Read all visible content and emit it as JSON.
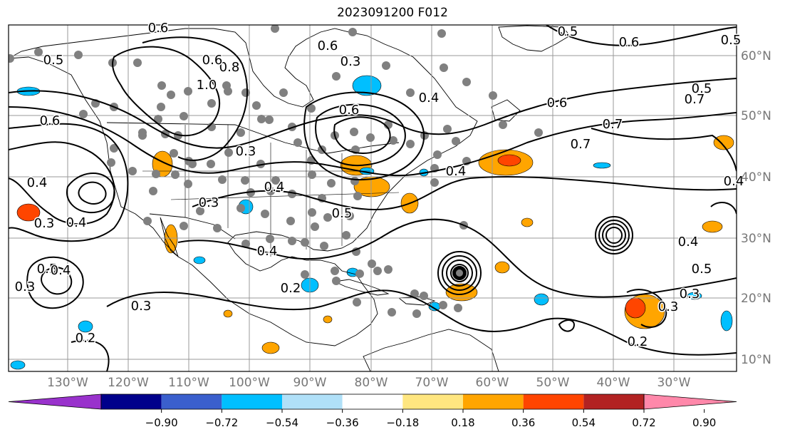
{
  "title": "2023091200 F012",
  "lon_labels": [
    "130°W",
    "120°W",
    "110°W",
    "100°W",
    "90°W",
    "80°W",
    "70°W",
    "60°W",
    "50°W",
    "40°W",
    "30°W"
  ],
  "lat_labels": [
    "60°N",
    "50°N",
    "40°N",
    "30°N",
    "20°N",
    "10°N"
  ],
  "contour_labels": [
    "0.5",
    "0.6",
    "0.5",
    "0.6",
    "0.4",
    "0.5",
    "0.7",
    "0.6",
    "0.8",
    "1.0",
    "0.6",
    "0.7",
    "0.4",
    "0.6",
    "0.7",
    "0.3",
    "0.6",
    "0.4",
    "0.3",
    "0.4",
    "0.3",
    "0.4",
    "0.3",
    "0.3",
    "0.4",
    "0.5",
    "0.3",
    "0.2",
    "0.3",
    "0.4",
    "0.4",
    "0.5",
    "0.2",
    "0.3",
    "0.2",
    "0.5",
    "0.4",
    "0.5",
    "0.6"
  ],
  "colorbar": {
    "colors": [
      "#9932cc",
      "#00008b",
      "#3a5fcd",
      "#00bfff",
      "#b0e0f8",
      "#ffffff",
      "#ffe680",
      "#ffa500",
      "#ff4500",
      "#b22222",
      "#ff88aa"
    ],
    "tick_labels": [
      "−0.90",
      "−0.72",
      "−0.54",
      "−0.36",
      "−0.18",
      "0.18",
      "0.36",
      "0.54",
      "0.72",
      "0.90"
    ]
  },
  "colors": {
    "land_outline": "#000000",
    "grid": "#999999",
    "station_dot": "#808080",
    "positive_fill": "#ffa500",
    "strong_positive_fill": "#ff4500",
    "negative_fill": "#00bfff"
  }
}
